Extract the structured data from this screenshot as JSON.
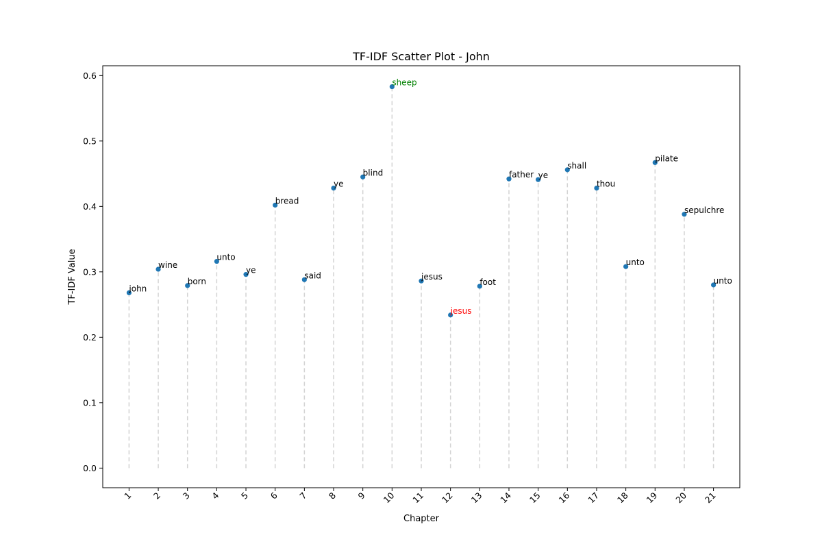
{
  "chart_data": {
    "type": "scatter",
    "title": "TF-IDF Scatter Plot - John",
    "xlabel": "Chapter",
    "ylabel": "TF-IDF Value",
    "ylim": [
      -0.03,
      0.615
    ],
    "y_ticks": [
      "0.0",
      "0.1",
      "0.2",
      "0.3",
      "0.4",
      "0.5",
      "0.6"
    ],
    "grid": false,
    "stem_color": "#d3d3d3",
    "marker_color": "#1f77b4",
    "default_label_color": "#000000",
    "points": [
      {
        "x": "1",
        "y": 0.268,
        "label": "john",
        "label_color": "#000000"
      },
      {
        "x": "2",
        "y": 0.304,
        "label": "wine",
        "label_color": "#000000"
      },
      {
        "x": "3",
        "y": 0.279,
        "label": "born",
        "label_color": "#000000"
      },
      {
        "x": "4",
        "y": 0.316,
        "label": "unto",
        "label_color": "#000000"
      },
      {
        "x": "5",
        "y": 0.296,
        "label": "ye",
        "label_color": "#000000"
      },
      {
        "x": "6",
        "y": 0.402,
        "label": "bread",
        "label_color": "#000000"
      },
      {
        "x": "7",
        "y": 0.288,
        "label": "said",
        "label_color": "#000000"
      },
      {
        "x": "8",
        "y": 0.428,
        "label": "ye",
        "label_color": "#000000"
      },
      {
        "x": "9",
        "y": 0.445,
        "label": "blind",
        "label_color": "#000000"
      },
      {
        "x": "10",
        "y": 0.583,
        "label": "sheep",
        "label_color": "#008000"
      },
      {
        "x": "11",
        "y": 0.286,
        "label": "jesus",
        "label_color": "#000000"
      },
      {
        "x": "12",
        "y": 0.234,
        "label": "jesus",
        "label_color": "#ff0000"
      },
      {
        "x": "13",
        "y": 0.278,
        "label": "foot",
        "label_color": "#000000"
      },
      {
        "x": "14",
        "y": 0.442,
        "label": "father",
        "label_color": "#000000"
      },
      {
        "x": "15",
        "y": 0.441,
        "label": "ye",
        "label_color": "#000000"
      },
      {
        "x": "16",
        "y": 0.456,
        "label": "shall",
        "label_color": "#000000"
      },
      {
        "x": "17",
        "y": 0.428,
        "label": "thou",
        "label_color": "#000000"
      },
      {
        "x": "18",
        "y": 0.308,
        "label": "unto",
        "label_color": "#000000"
      },
      {
        "x": "19",
        "y": 0.467,
        "label": "pilate",
        "label_color": "#000000"
      },
      {
        "x": "20",
        "y": 0.388,
        "label": "sepulchre",
        "label_color": "#000000"
      },
      {
        "x": "21",
        "y": 0.28,
        "label": "unto",
        "label_color": "#000000"
      }
    ]
  }
}
